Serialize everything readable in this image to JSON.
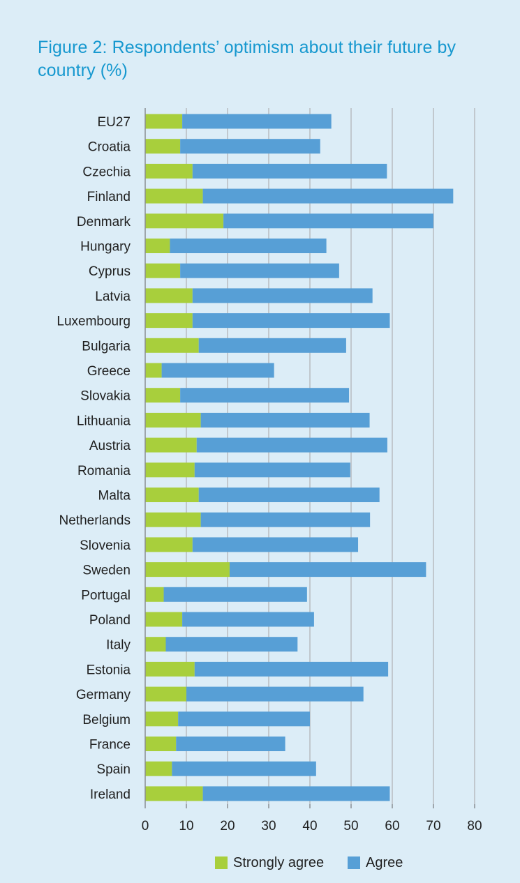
{
  "chart_data": {
    "type": "bar",
    "orientation": "horizontal",
    "stacked": true,
    "title": "Figure 2: Respondents’ optimism about their future by country (%)",
    "xlabel": "",
    "ylabel": "",
    "xlim": [
      0,
      80
    ],
    "xticks": [
      0,
      10,
      20,
      30,
      40,
      50,
      60,
      70,
      80
    ],
    "grid": true,
    "legend_position": "bottom-center",
    "categories": [
      "EU27",
      "Croatia",
      "Czechia",
      "Finland",
      "Denmark",
      "Hungary",
      "Cyprus",
      "Latvia",
      "Luxembourg",
      "Bulgaria",
      "Greece",
      "Slovakia",
      "Lithuania",
      "Austria",
      "Romania",
      "Malta",
      "Netherlands",
      "Slovenia",
      "Sweden",
      "Portugal",
      "Poland",
      "Italy",
      "Estonia",
      "Germany",
      "Belgium",
      "France",
      "Spain",
      "Ireland"
    ],
    "series": [
      {
        "name": "Strongly agree",
        "color": "#a8cf3c",
        "values": [
          9,
          8.5,
          11.5,
          14,
          19,
          6,
          8.5,
          11.5,
          11.5,
          13,
          4,
          8.5,
          13.5,
          12.5,
          12,
          13,
          13.5,
          11.5,
          20.5,
          4.5,
          9,
          5,
          12,
          10,
          8,
          7.5,
          6.5,
          14
        ]
      },
      {
        "name": "Agree",
        "color": "#579fd6",
        "values": [
          36.2,
          34,
          47.2,
          60.8,
          51,
          38,
          38.6,
          43.7,
          47.9,
          35.8,
          27.3,
          41,
          41,
          46.3,
          37.8,
          43.9,
          41.1,
          40.2,
          47.7,
          34.8,
          32,
          32,
          47,
          43,
          32,
          26.5,
          35,
          45.4
        ]
      }
    ]
  }
}
